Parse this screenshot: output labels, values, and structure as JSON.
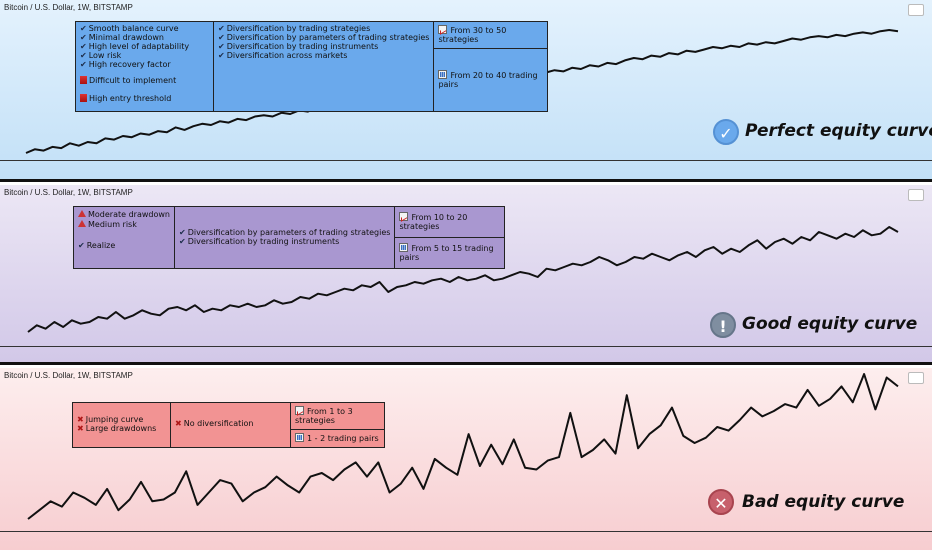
{
  "panels": [
    {
      "header": "Bitcoin / U.S. Dollar, 1W, BITSTAMP",
      "label": "Perfect equity curve",
      "pros": [
        "Smooth balance curve",
        "Minimal drawdown",
        "High level of adaptability",
        "Low risk",
        "High recovery factor"
      ],
      "cons": [
        "Difficult to implement",
        "High entry threshold"
      ],
      "diversification": [
        "Diversification by trading strategies",
        "Diversification by parameters of trading strategies",
        "Diversification by trading instruments",
        "Diversification across markets"
      ],
      "strategies": "From 30 to 50 strategies",
      "pairs": "From 20 to 40 trading pairs",
      "accent": "#6aa9ec"
    },
    {
      "header": "Bitcoin / U.S. Dollar, 1W, BITSTAMP",
      "label": "Good equity curve",
      "warnings": [
        "Moderate drawdown",
        "Medium risk"
      ],
      "pros": [
        "Realize"
      ],
      "diversification": [
        "Diversification by parameters of trading strategies",
        "Diversification by trading instruments"
      ],
      "strategies": "From 10 to 20 strategies",
      "pairs": "From 5 to 15 trading pairs",
      "accent": "#a997d0"
    },
    {
      "header": "Bitcoin / U.S. Dollar, 1W, BITSTAMP",
      "label": "Bad equity curve",
      "cons": [
        "Jumping curve",
        "Large drawdowns"
      ],
      "diversification": [
        "No diversification"
      ],
      "strategies": "From 1 to 3 strategies",
      "pairs": "1 - 2 trading pairs",
      "accent": "#f29393"
    }
  ],
  "icons": {
    "check": "check-icon",
    "warning": "warning-icon",
    "cross": "cross-icon",
    "badge_1": "check-circle-icon",
    "badge_2": "exclamation-circle-icon",
    "badge_3": "cross-circle-icon"
  },
  "chart_data": [
    {
      "type": "line",
      "series": [
        {
          "values": [
            0,
            3,
            2,
            5,
            4,
            8,
            6,
            9,
            8,
            12,
            11,
            14,
            13,
            16,
            15,
            18,
            17,
            21,
            19,
            22,
            24,
            23,
            26,
            25,
            28,
            27,
            30,
            31,
            30,
            33,
            32,
            35,
            34,
            37,
            39,
            38,
            41,
            40,
            43,
            45,
            44,
            47,
            46,
            49,
            48,
            51,
            53,
            52,
            55,
            54,
            56,
            58,
            57,
            60,
            59,
            62,
            61,
            64,
            63,
            66,
            68,
            67,
            70,
            69,
            72,
            71,
            74,
            73,
            76,
            78,
            77,
            80,
            79,
            82,
            81,
            84,
            83,
            85,
            87,
            86,
            88,
            87,
            90,
            89,
            91,
            90,
            92,
            94,
            93,
            95,
            96,
            95,
            97,
            96,
            98,
            99,
            98,
            100,
            101,
            100
          ]
        }
      ]
    },
    {
      "type": "line",
      "series": [
        {
          "values": [
            0,
            8,
            4,
            12,
            6,
            14,
            10,
            12,
            18,
            16,
            24,
            16,
            20,
            26,
            22,
            20,
            28,
            30,
            26,
            32,
            24,
            28,
            26,
            32,
            30,
            34,
            30,
            32,
            38,
            34,
            36,
            42,
            40,
            46,
            44,
            48,
            52,
            50,
            56,
            54,
            60,
            48,
            54,
            56,
            60,
            58,
            62,
            64,
            60,
            66,
            62,
            64,
            68,
            62,
            64,
            68,
            72,
            70,
            66,
            76,
            74,
            78,
            82,
            80,
            84,
            90,
            86,
            80,
            84,
            90,
            88,
            94,
            90,
            86,
            92,
            96,
            90,
            98,
            102,
            94,
            100,
            96,
            104,
            110,
            100,
            108,
            112,
            106,
            114,
            110,
            120,
            116,
            112,
            118,
            114,
            122,
            116,
            118,
            126,
            120
          ]
        }
      ]
    },
    {
      "type": "line",
      "series": [
        {
          "values": [
            0,
            10,
            20,
            14,
            30,
            24,
            16,
            34,
            10,
            22,
            42,
            20,
            22,
            30,
            54,
            16,
            30,
            44,
            40,
            20,
            30,
            36,
            48,
            38,
            30,
            48,
            52,
            44,
            56,
            64,
            48,
            64,
            30,
            40,
            58,
            34,
            68,
            58,
            50,
            96,
            60,
            84,
            62,
            90,
            58,
            56,
            66,
            70,
            120,
            70,
            78,
            90,
            74,
            140,
            80,
            96,
            106,
            126,
            94,
            86,
            92,
            104,
            100,
            112,
            126,
            116,
            122,
            130,
            126,
            146,
            128,
            136,
            150,
            132,
            164,
            124,
            160,
            150
          ]
        }
      ]
    }
  ]
}
